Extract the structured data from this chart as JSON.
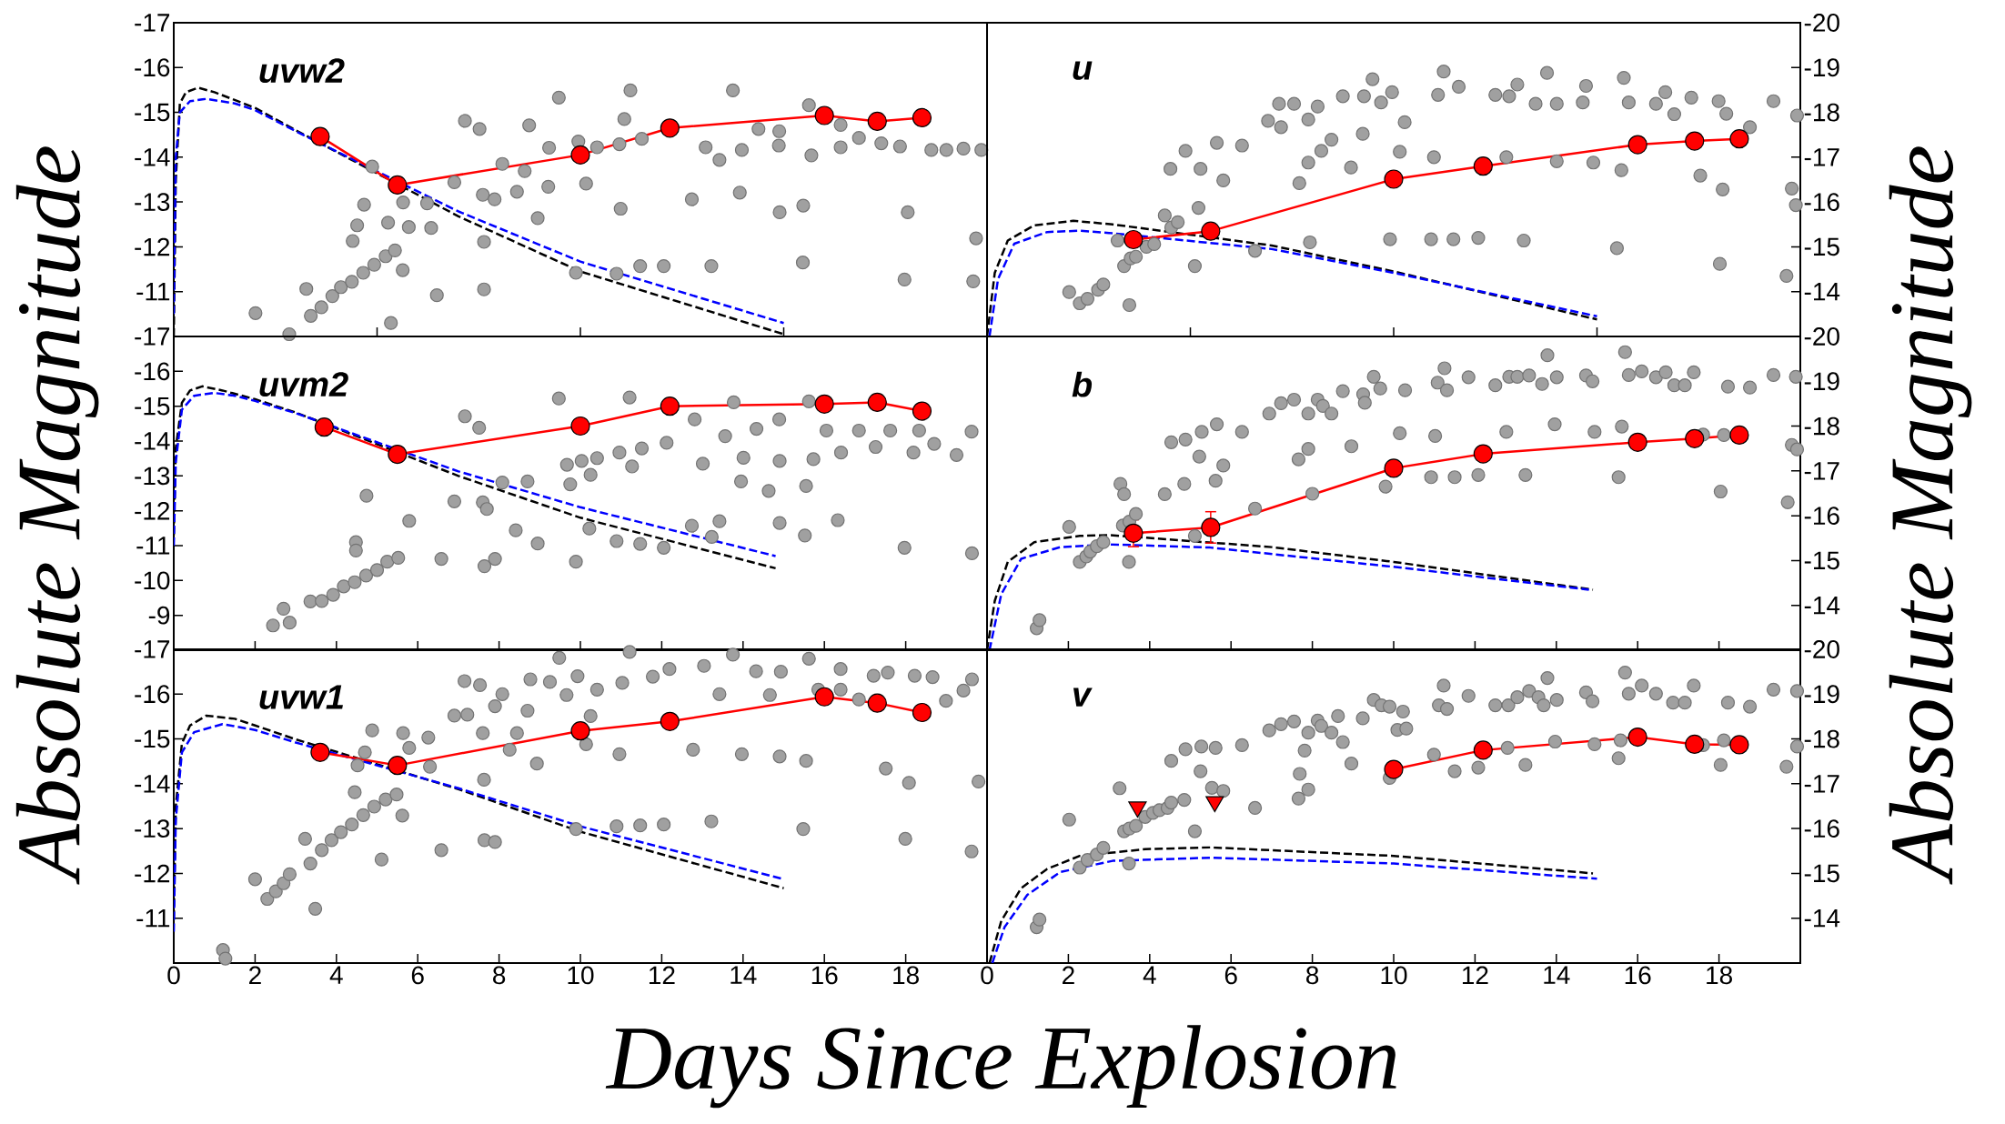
{
  "chart_data": [
    {
      "type": "scatter",
      "title": "uvw2",
      "xlim": [
        0,
        20
      ],
      "ylim": [
        -10,
        -17
      ],
      "xticks": [
        0,
        5,
        10,
        15,
        20
      ],
      "yticks": [
        -17,
        -16,
        -15,
        -14,
        -13,
        -12,
        -11
      ],
      "tick_labels": "y",
      "series": [
        {
          "type": "scatter",
          "color": "#a0a0a0",
          "marker": "circle",
          "x": [
            2.01,
            2.84,
            3.26,
            3.37,
            3.63,
            3.9,
            4.11,
            4.38,
            4.66,
            4.93,
            5.21,
            5.44,
            4.4,
            4.51,
            4.68,
            4.88,
            5.27,
            5.63,
            5.34,
            5.78,
            5.64,
            6.23,
            6.33,
            6.47,
            6.9,
            7.16,
            7.52,
            7.6,
            7.63,
            7.63,
            7.89,
            8.08,
            8.44,
            8.63,
            8.74,
            8.95,
            9.21,
            9.23,
            9.47,
            9.89,
            9.95,
            10.14,
            10.41,
            10.96,
            10.99,
            11.08,
            11.23,
            10.89,
            11.47,
            11.51,
            12.05,
            12.74,
            13.22,
            13.08,
            13.42,
            13.75,
            13.92,
            13.97,
            14.38,
            14.89,
            14.9,
            14.88,
            15.48,
            15.47,
            15.68,
            15.62,
            16.4,
            16.4,
            16.85,
            17.4,
            17.86,
            17.97,
            18.05,
            18.63,
            19.0,
            19.42,
            19.66,
            19.73,
            19.86
          ],
          "values": [
            -10.52,
            -10.05,
            -11.06,
            -10.46,
            -10.65,
            -10.9,
            -11.1,
            -11.22,
            -11.42,
            -11.6,
            -11.79,
            -11.92,
            -12.13,
            -12.48,
            -12.94,
            -13.79,
            -12.54,
            -11.48,
            -10.3,
            -12.44,
            -12.99,
            -12.97,
            -12.42,
            -10.92,
            -13.44,
            -14.81,
            -14.63,
            -13.16,
            -12.11,
            -11.05,
            -13.06,
            -13.85,
            -13.23,
            -13.69,
            -14.71,
            -12.64,
            -13.34,
            -14.21,
            -15.33,
            -11.42,
            -14.35,
            -13.41,
            -14.22,
            -14.29,
            -12.85,
            -14.85,
            -15.49,
            -11.4,
            -11.57,
            -14.41,
            -11.57,
            -13.06,
            -11.57,
            -14.22,
            -13.94,
            -15.49,
            -13.21,
            -14.16,
            -14.63,
            -14.58,
            -12.77,
            -14.26,
            -12.92,
            -11.65,
            -14.04,
            -15.16,
            -14.22,
            -14.72,
            -14.43,
            -14.31,
            -14.24,
            -11.27,
            -12.77,
            -14.16,
            -14.16,
            -14.19,
            -11.23,
            -12.19,
            -14.16
          ]
        },
        {
          "type": "line",
          "color": "#000000",
          "line_style": "dashed",
          "x": [
            0,
            0.05,
            0.15,
            0.3,
            0.6,
            1.0,
            2,
            3.0,
            7.0,
            10,
            15
          ],
          "values": [
            -10.0,
            -13.5,
            -15.2,
            -15.45,
            -15.55,
            -15.45,
            -15.1,
            -14.6,
            -12.68,
            -11.45,
            -10.05
          ]
        },
        {
          "type": "line",
          "color": "#0000ff",
          "line_style": "dashed",
          "x": [
            0,
            0.05,
            0.15,
            0.4,
            0.8,
            1.5,
            2,
            3.0,
            7.0,
            10,
            15
          ],
          "values": [
            -10.5,
            -14.0,
            -15.0,
            -15.25,
            -15.3,
            -15.2,
            -15.05,
            -14.58,
            -12.79,
            -11.67,
            -10.3
          ]
        },
        {
          "type": "line",
          "color": "#ff0000",
          "marker": "circle",
          "x": [
            3.6,
            5.5,
            10.0,
            12.2,
            16.0,
            17.3,
            18.4
          ],
          "values": [
            -14.46,
            -13.38,
            -14.05,
            -14.65,
            -14.93,
            -14.8,
            -14.88
          ]
        }
      ]
    },
    {
      "type": "scatter",
      "title": "u",
      "xlim": [
        0,
        20
      ],
      "ylim": [
        -13,
        -20
      ],
      "xticks": [
        0,
        5,
        10,
        15,
        20
      ],
      "yticks": [
        -20,
        -19,
        -18,
        -17,
        -16,
        -15,
        -14
      ],
      "tick_labels": "y",
      "series": [
        {
          "type": "scatter",
          "color": "#a0a0a0",
          "marker": "circle",
          "x": [
            2.02,
            2.28,
            2.47,
            2.73,
            2.86,
            3.21,
            3.37,
            3.53,
            3.66,
            3.5,
            3.92,
            4.11,
            4.37,
            4.53,
            4.51,
            4.69,
            4.88,
            5.11,
            5.25,
            5.2,
            5.65,
            5.81,
            6.27,
            6.59,
            6.91,
            7.18,
            7.23,
            7.55,
            7.68,
            7.9,
            7.9,
            7.94,
            8.13,
            8.22,
            8.47,
            8.75,
            8.95,
            9.24,
            9.27,
            9.48,
            9.69,
            9.91,
            9.96,
            10.15,
            10.27,
            10.92,
            10.99,
            11.09,
            11.23,
            11.47,
            11.6,
            12.08,
            12.5,
            12.77,
            12.84,
            13.04,
            13.2,
            13.49,
            13.77,
            14.01,
            14.01,
            14.65,
            14.73,
            14.91,
            15.49,
            15.6,
            15.66,
            15.78,
            16.45,
            16.68,
            16.9,
            17.32,
            17.54,
            17.99,
            18.02,
            18.09,
            18.18,
            18.76,
            19.34,
            19.66,
            19.79,
            19.89,
            19.92
          ],
          "values": [
            -13.99,
            -13.74,
            -13.84,
            -14.04,
            -14.16,
            -15.14,
            -14.57,
            -14.74,
            -14.78,
            -13.7,
            -15.0,
            -15.06,
            -15.7,
            -15.43,
            -16.74,
            -15.55,
            -17.14,
            -14.57,
            -16.74,
            -15.87,
            -17.32,
            -16.48,
            -17.26,
            -14.91,
            -17.81,
            -18.19,
            -17.67,
            -18.19,
            -16.42,
            -16.88,
            -17.84,
            -15.1,
            -18.13,
            -17.14,
            -17.39,
            -18.36,
            -16.77,
            -17.52,
            -18.36,
            -18.74,
            -18.22,
            -15.17,
            -18.45,
            -17.12,
            -17.78,
            -15.17,
            -17.0,
            -18.39,
            -18.91,
            -15.17,
            -18.57,
            -15.2,
            -18.39,
            -17.0,
            -18.36,
            -18.62,
            -15.14,
            -18.19,
            -18.88,
            -16.91,
            -18.19,
            -18.22,
            -18.59,
            -16.88,
            -14.97,
            -16.71,
            -18.77,
            -18.22,
            -18.19,
            -18.45,
            -17.96,
            -18.33,
            -16.59,
            -18.25,
            -14.62,
            -16.28,
            -17.97,
            -17.67,
            -18.25,
            -14.35,
            -16.3,
            -15.93,
            -17.93
          ]
        },
        {
          "type": "line",
          "color": "#000000",
          "line_style": "dashed",
          "x": [
            0,
            0.19,
            0.51,
            1.16,
            2.12,
            3.09,
            7.0,
            10,
            15
          ],
          "values": [
            -13.0,
            -14.42,
            -15.14,
            -15.48,
            -15.58,
            -15.5,
            -15.03,
            -14.45,
            -13.38
          ]
        },
        {
          "type": "line",
          "color": "#0000ff",
          "line_style": "dashed",
          "x": [
            0.06,
            0.27,
            0.67,
            1.48,
            2.28,
            3.0,
            7.0,
            10,
            15
          ],
          "values": [
            -13.0,
            -14.28,
            -15.07,
            -15.33,
            -15.36,
            -15.31,
            -14.95,
            -14.42,
            -13.45
          ]
        },
        {
          "type": "line",
          "color": "#ff0000",
          "marker": "circle",
          "x": [
            3.6,
            5.5,
            10.0,
            12.2,
            16.0,
            17.4,
            18.5
          ],
          "values": [
            -15.16,
            -15.35,
            -16.51,
            -16.8,
            -17.28,
            -17.36,
            -17.41
          ]
        }
      ]
    },
    {
      "type": "scatter",
      "title": "uvm2",
      "ylabel": "Absolute Magnitude",
      "xlim": [
        0,
        20
      ],
      "ylim": [
        -8,
        -17
      ],
      "xticks": [
        0,
        2,
        4,
        6,
        8,
        10,
        12,
        14,
        16,
        18,
        20
      ],
      "yticks": [
        -17,
        -16,
        -15,
        -14,
        -13,
        -12,
        -11,
        -10,
        -9
      ],
      "tick_labels": "y",
      "series": [
        {
          "type": "scatter",
          "color": "#a0a0a0",
          "marker": "circle",
          "x": [
            2.44,
            2.7,
            2.85,
            3.36,
            3.64,
            3.92,
            4.18,
            4.45,
            4.73,
            5.0,
            5.25,
            5.52,
            4.48,
            4.48,
            4.74,
            5.79,
            6.58,
            6.9,
            7.16,
            7.51,
            7.6,
            7.64,
            7.7,
            7.9,
            8.08,
            8.41,
            8.7,
            8.95,
            9.47,
            9.67,
            9.75,
            9.89,
            10.03,
            10.22,
            10.25,
            10.41,
            10.89,
            10.96,
            11.21,
            11.27,
            11.51,
            11.47,
            12.05,
            12.12,
            12.81,
            12.74,
            13.01,
            13.23,
            13.42,
            13.56,
            13.77,
            13.95,
            14.01,
            14.33,
            14.63,
            14.89,
            14.9,
            14.9,
            15.52,
            15.55,
            15.62,
            15.73,
            16.05,
            16.33,
            16.41,
            16.85,
            17.26,
            17.62,
            17.97,
            18.19,
            18.33,
            18.7,
            19.25,
            19.62,
            19.63
          ],
          "values": [
            -8.71,
            -9.19,
            -8.79,
            -9.4,
            -9.41,
            -9.59,
            -9.83,
            -9.95,
            -10.14,
            -10.3,
            -10.54,
            -10.65,
            -11.1,
            -10.86,
            -12.43,
            -11.71,
            -10.62,
            -12.27,
            -14.71,
            -14.38,
            -12.24,
            -10.41,
            -12.05,
            -10.62,
            -12.81,
            -11.44,
            -12.84,
            -11.06,
            -15.22,
            -13.32,
            -12.76,
            -10.54,
            -13.43,
            -11.49,
            -13.03,
            -13.51,
            -11.13,
            -13.67,
            -15.25,
            -13.27,
            -13.79,
            -11.05,
            -10.94,
            -13.95,
            -14.62,
            -11.57,
            -13.35,
            -11.25,
            -11.7,
            -14.14,
            -15.11,
            -12.84,
            -13.52,
            -14.35,
            -12.57,
            -14.62,
            -11.65,
            -13.43,
            -11.29,
            -12.71,
            -15.14,
            -13.48,
            -14.3,
            -11.73,
            -13.67,
            -14.3,
            -13.83,
            -14.3,
            -10.94,
            -13.67,
            -14.3,
            -13.92,
            -13.6,
            -14.27,
            -10.78
          ]
        },
        {
          "type": "line",
          "color": "#000000",
          "line_style": "dashed",
          "x": [
            0,
            0.05,
            0.2,
            0.4,
            0.7,
            1.2,
            2,
            3.0,
            7.0,
            10,
            14.8
          ],
          "values": [
            -11.3,
            -13.8,
            -15.1,
            -15.45,
            -15.57,
            -15.45,
            -15.2,
            -14.82,
            -13.0,
            -11.8,
            -10.35
          ]
        },
        {
          "type": "line",
          "color": "#0000ff",
          "line_style": "dashed",
          "x": [
            0,
            0.05,
            0.2,
            0.5,
            1.0,
            1.5,
            2,
            3.0,
            7.0,
            10,
            14.8
          ],
          "values": [
            -11.0,
            -13.4,
            -14.9,
            -15.3,
            -15.38,
            -15.3,
            -15.15,
            -14.8,
            -13.13,
            -12.1,
            -10.7
          ]
        },
        {
          "type": "line",
          "color": "#ff0000",
          "marker": "circle",
          "x": [
            3.7,
            5.5,
            10.0,
            12.2,
            16.0,
            17.3,
            18.4
          ],
          "values": [
            -14.4,
            -13.62,
            -14.43,
            -15.0,
            -15.06,
            -15.11,
            -14.86
          ]
        }
      ]
    },
    {
      "type": "scatter",
      "title": "b",
      "ylabel": "Absolute Magnitude",
      "xlim": [
        0,
        20
      ],
      "ylim": [
        -13,
        -20
      ],
      "xticks": [
        0,
        2,
        4,
        6,
        8,
        10,
        12,
        14,
        16,
        18,
        20
      ],
      "yticks": [
        -20,
        -19,
        -18,
        -17,
        -16,
        -15,
        -14
      ],
      "tick_labels": "y",
      "series": [
        {
          "type": "scatter",
          "color": "#a0a0a0",
          "marker": "circle",
          "x": [
            1.22,
            1.29,
            2.02,
            2.28,
            2.44,
            2.54,
            2.7,
            2.86,
            3.28,
            3.37,
            3.34,
            3.49,
            3.5,
            3.66,
            4.37,
            4.53,
            4.85,
            4.88,
            5.11,
            5.22,
            5.28,
            5.62,
            5.65,
            5.81,
            6.27,
            6.59,
            6.94,
            7.23,
            7.55,
            7.66,
            7.9,
            7.9,
            8.0,
            8.13,
            8.26,
            8.47,
            8.75,
            8.96,
            9.25,
            9.29,
            9.51,
            9.67,
            9.8,
            10.15,
            10.28,
            10.92,
            11.02,
            11.08,
            11.25,
            11.31,
            11.5,
            11.84,
            12.08,
            12.5,
            12.77,
            12.84,
            13.04,
            13.24,
            13.33,
            13.65,
            13.78,
            13.96,
            14.01,
            14.73,
            14.89,
            14.94,
            15.53,
            15.61,
            15.69,
            15.78,
            16.1,
            16.45,
            16.69,
            16.9,
            17.16,
            17.38,
            17.61,
            18.04,
            18.12,
            18.22,
            18.76,
            19.34,
            19.69,
            19.79,
            19.89,
            19.92
          ],
          "values": [
            -13.49,
            -13.67,
            -15.75,
            -14.97,
            -15.09,
            -15.2,
            -15.32,
            -15.41,
            -16.71,
            -16.48,
            -15.78,
            -14.97,
            -15.87,
            -16.04,
            -16.48,
            -17.64,
            -16.71,
            -17.7,
            -15.55,
            -17.32,
            -17.87,
            -16.78,
            -18.04,
            -17.12,
            -17.87,
            -16.16,
            -18.28,
            -18.51,
            -18.59,
            -17.26,
            -17.49,
            -18.28,
            -16.49,
            -18.59,
            -18.45,
            -18.28,
            -18.78,
            -17.55,
            -18.71,
            -18.52,
            -19.1,
            -18.84,
            -16.65,
            -17.84,
            -18.8,
            -16.86,
            -17.78,
            -18.97,
            -19.29,
            -18.8,
            -16.86,
            -19.09,
            -16.91,
            -18.91,
            -17.87,
            -19.1,
            -19.1,
            -16.91,
            -19.13,
            -18.94,
            -19.58,
            -18.04,
            -19.09,
            -19.13,
            -19.0,
            -17.87,
            -16.86,
            -17.99,
            -19.65,
            -19.14,
            -19.22,
            -19.09,
            -19.2,
            -18.91,
            -18.91,
            -19.2,
            -17.81,
            -16.54,
            -17.8,
            -18.88,
            -18.86,
            -19.14,
            -16.3,
            -17.58,
            -19.1,
            -17.48
          ]
        },
        {
          "type": "line",
          "color": "#000000",
          "line_style": "dashed",
          "x": [
            0,
            0.19,
            0.51,
            1.16,
            2.28,
            3.0,
            7.0,
            10,
            14.9
          ],
          "values": [
            -13.0,
            -14.1,
            -14.97,
            -15.41,
            -15.55,
            -15.57,
            -15.3,
            -14.97,
            -14.35
          ]
        },
        {
          "type": "line",
          "color": "#0000ff",
          "line_style": "dashed",
          "x": [
            0.06,
            0.35,
            0.84,
            1.8,
            3.09,
            5.49,
            10,
            14.8
          ],
          "values": [
            -13.0,
            -14.25,
            -15.04,
            -15.3,
            -15.36,
            -15.29,
            -14.86,
            -14.35
          ]
        },
        {
          "type": "line",
          "color": "#ff0000",
          "marker": "circle",
          "x": [
            3.6,
            5.5,
            10.0,
            12.2,
            16.0,
            17.4,
            18.5
          ],
          "values": [
            -15.61,
            -15.74,
            -17.06,
            -17.38,
            -17.64,
            -17.72,
            -17.8
          ],
          "errors": [
            0.3,
            0.35,
            null,
            null,
            null,
            null,
            null
          ]
        }
      ]
    },
    {
      "type": "scatter",
      "title": "uvw1",
      "xlabel": "Days Since Explosion",
      "xlim": [
        0,
        20
      ],
      "ylim": [
        -10,
        -17
      ],
      "xticks": [
        0,
        2,
        4,
        6,
        8,
        10,
        12,
        14,
        16,
        18
      ],
      "yticks": [
        -17,
        -16,
        -15,
        -14,
        -13,
        -12,
        -11
      ],
      "series": [
        {
          "type": "scatter",
          "color": "#a0a0a0",
          "marker": "circle",
          "x": [
            1.21,
            1.27,
            2.0,
            2.3,
            2.51,
            2.7,
            2.85,
            3.23,
            3.36,
            3.48,
            3.64,
            3.88,
            4.11,
            4.38,
            4.66,
            4.93,
            5.21,
            5.48,
            5.62,
            4.45,
            4.52,
            4.7,
            4.88,
            5.11,
            5.64,
            5.79,
            6.26,
            6.3,
            6.58,
            6.9,
            7.22,
            7.15,
            7.53,
            7.6,
            7.63,
            7.64,
            7.9,
            7.9,
            8.08,
            8.26,
            8.44,
            8.7,
            8.77,
            8.93,
            9.25,
            9.48,
            9.66,
            9.89,
            9.93,
            10.14,
            10.25,
            10.41,
            10.89,
            10.96,
            11.03,
            11.21,
            11.47,
            11.78,
            12.05,
            12.19,
            12.77,
            13.04,
            13.22,
            13.42,
            13.75,
            13.97,
            14.32,
            14.66,
            14.9,
            14.93,
            15.48,
            15.55,
            15.62,
            15.85,
            16.4,
            16.4,
            16.85,
            17.21,
            17.51,
            17.56,
            17.99,
            18.08,
            18.22,
            18.66,
            18.99,
            19.42,
            19.62,
            19.79,
            19.63
          ],
          "values": [
            -10.29,
            -10.1,
            -11.87,
            -11.43,
            -11.6,
            -11.78,
            -11.98,
            -12.77,
            -12.22,
            -11.21,
            -12.52,
            -12.74,
            -12.92,
            -13.09,
            -13.3,
            -13.49,
            -13.65,
            -13.76,
            -13.29,
            -13.81,
            -14.41,
            -14.7,
            -15.19,
            -12.31,
            -15.13,
            -14.8,
            -15.03,
            -14.38,
            -12.52,
            -15.52,
            -15.54,
            -16.29,
            -16.2,
            -15.13,
            -14.09,
            -12.74,
            -12.7,
            -15.73,
            -16.0,
            -14.76,
            -15.13,
            -15.63,
            -16.33,
            -14.45,
            -16.27,
            -16.81,
            -15.98,
            -12.99,
            -16.4,
            -14.88,
            -15.51,
            -16.1,
            -13.05,
            -14.66,
            -16.25,
            -16.94,
            -13.07,
            -16.39,
            -13.09,
            -16.56,
            -14.76,
            -16.63,
            -13.16,
            -16.0,
            -16.88,
            -14.66,
            -16.51,
            -15.98,
            -14.61,
            -16.5,
            -12.99,
            -14.51,
            -16.79,
            -16.1,
            -16.56,
            -16.1,
            -15.88,
            -16.41,
            -14.34,
            -16.48,
            -12.77,
            -14.02,
            -16.41,
            -16.38,
            -15.85,
            -16.08,
            -12.49,
            -14.05,
            -16.33
          ]
        },
        {
          "type": "line",
          "color": "#000000",
          "line_style": "dashed",
          "x": [
            0,
            0.05,
            0.2,
            0.4,
            0.8,
            1.5,
            2,
            3.0,
            7.0,
            10,
            15
          ],
          "values": [
            -11.0,
            -13.5,
            -14.9,
            -15.3,
            -15.52,
            -15.45,
            -15.3,
            -14.99,
            -13.88,
            -12.93,
            -11.67
          ]
        },
        {
          "type": "line",
          "color": "#0000ff",
          "line_style": "dashed",
          "x": [
            0,
            0.05,
            0.2,
            0.5,
            1.2,
            2,
            3.0,
            7.0,
            10,
            15
          ],
          "values": [
            -10.7,
            -13.2,
            -14.7,
            -15.15,
            -15.33,
            -15.2,
            -14.92,
            -13.9,
            -13.05,
            -11.87
          ]
        },
        {
          "type": "line",
          "color": "#ff0000",
          "marker": "circle",
          "x": [
            3.6,
            5.5,
            10.0,
            12.2,
            16.0,
            17.3,
            18.4
          ],
          "values": [
            -14.7,
            -14.41,
            -15.18,
            -15.39,
            -15.94,
            -15.8,
            -15.59
          ]
        }
      ]
    },
    {
      "type": "scatter",
      "title": "v",
      "xlim": [
        0,
        20
      ],
      "ylim": [
        -13,
        -20
      ],
      "xticks": [
        0,
        2,
        4,
        6,
        8,
        10,
        12,
        14,
        16,
        18
      ],
      "yticks": [
        -20,
        -19,
        -18,
        -17,
        -16,
        -15,
        -14
      ],
      "series": [
        {
          "type": "scatter",
          "color": "#a0a0a0",
          "marker": "circle",
          "x": [
            1.22,
            1.29,
            2.02,
            2.28,
            2.47,
            2.7,
            2.86,
            3.26,
            3.37,
            3.49,
            3.5,
            3.66,
            3.89,
            4.08,
            4.24,
            4.44,
            4.53,
            4.53,
            4.85,
            4.88,
            5.11,
            5.25,
            5.27,
            5.53,
            5.62,
            5.81,
            6.27,
            6.59,
            6.94,
            7.23,
            7.55,
            7.66,
            7.69,
            7.81,
            7.9,
            7.9,
            8.13,
            8.22,
            8.47,
            8.63,
            8.75,
            8.96,
            9.24,
            9.51,
            9.7,
            9.9,
            9.9,
            10.09,
            10.23,
            10.31,
            10.99,
            11.11,
            11.23,
            11.31,
            11.5,
            11.84,
            12.08,
            12.5,
            12.8,
            12.82,
            13.04,
            13.24,
            13.33,
            13.56,
            13.69,
            13.78,
            13.97,
            14.01,
            14.73,
            14.89,
            14.94,
            15.53,
            15.58,
            15.69,
            15.78,
            16.1,
            16.45,
            16.87,
            17.16,
            17.38,
            17.61,
            18.04,
            18.12,
            18.22,
            18.76,
            19.34,
            19.66,
            19.92,
            19.92
          ],
          "values": [
            -13.8,
            -13.97,
            -16.2,
            -15.13,
            -15.3,
            -15.42,
            -15.57,
            -16.9,
            -15.94,
            -15.22,
            -16.0,
            -16.06,
            -16.26,
            -16.35,
            -16.41,
            -16.46,
            -16.58,
            -17.51,
            -16.64,
            -17.77,
            -15.94,
            -17.28,
            -17.83,
            -16.91,
            -17.8,
            -16.84,
            -17.86,
            -16.46,
            -18.19,
            -18.33,
            -18.39,
            -16.67,
            -17.22,
            -17.74,
            -18.14,
            -16.87,
            -18.41,
            -18.29,
            -18.14,
            -18.51,
            -17.93,
            -17.45,
            -18.46,
            -18.87,
            -18.75,
            -18.72,
            -17.13,
            -18.2,
            -18.61,
            -18.23,
            -17.65,
            -18.75,
            -19.19,
            -18.67,
            -17.28,
            -18.96,
            -17.36,
            -18.75,
            -17.8,
            -18.75,
            -18.93,
            -17.42,
            -19.07,
            -18.93,
            -18.75,
            -19.36,
            -17.94,
            -18.87,
            -19.04,
            -18.84,
            -17.88,
            -17.57,
            -17.97,
            -19.48,
            -19.01,
            -19.19,
            -19.01,
            -18.81,
            -18.81,
            -19.19,
            -17.86,
            -17.42,
            -17.97,
            -18.81,
            -18.72,
            -19.1,
            -17.38,
            -19.07,
            -17.83
          ]
        },
        {
          "type": "line",
          "color": "#000000",
          "line_style": "dashed",
          "x": [
            0.06,
            0.35,
            0.84,
            1.48,
            2.28,
            3.89,
            5.49,
            10,
            14.9
          ],
          "values": [
            -13.0,
            -13.94,
            -14.67,
            -15.1,
            -15.39,
            -15.54,
            -15.58,
            -15.39,
            -15.0
          ]
        },
        {
          "type": "line",
          "color": "#0000ff",
          "line_style": "dashed",
          "x": [
            0.13,
            0.43,
            0.99,
            1.8,
            3.09,
            5.49,
            10,
            15
          ],
          "values": [
            -13.0,
            -13.8,
            -14.52,
            -15.03,
            -15.28,
            -15.35,
            -15.22,
            -14.88
          ]
        },
        {
          "type": "line",
          "color": "#ff0000",
          "marker": "circle",
          "x": [
            10.0,
            12.2,
            16.0,
            17.4,
            18.5
          ],
          "values": [
            -17.32,
            -17.75,
            -18.04,
            -17.88,
            -17.87
          ]
        },
        {
          "type": "scatter",
          "color": "#ff0000",
          "marker": "triangle",
          "x": [
            3.7,
            5.6
          ],
          "values": [
            -16.48,
            -16.6
          ]
        }
      ]
    }
  ]
}
